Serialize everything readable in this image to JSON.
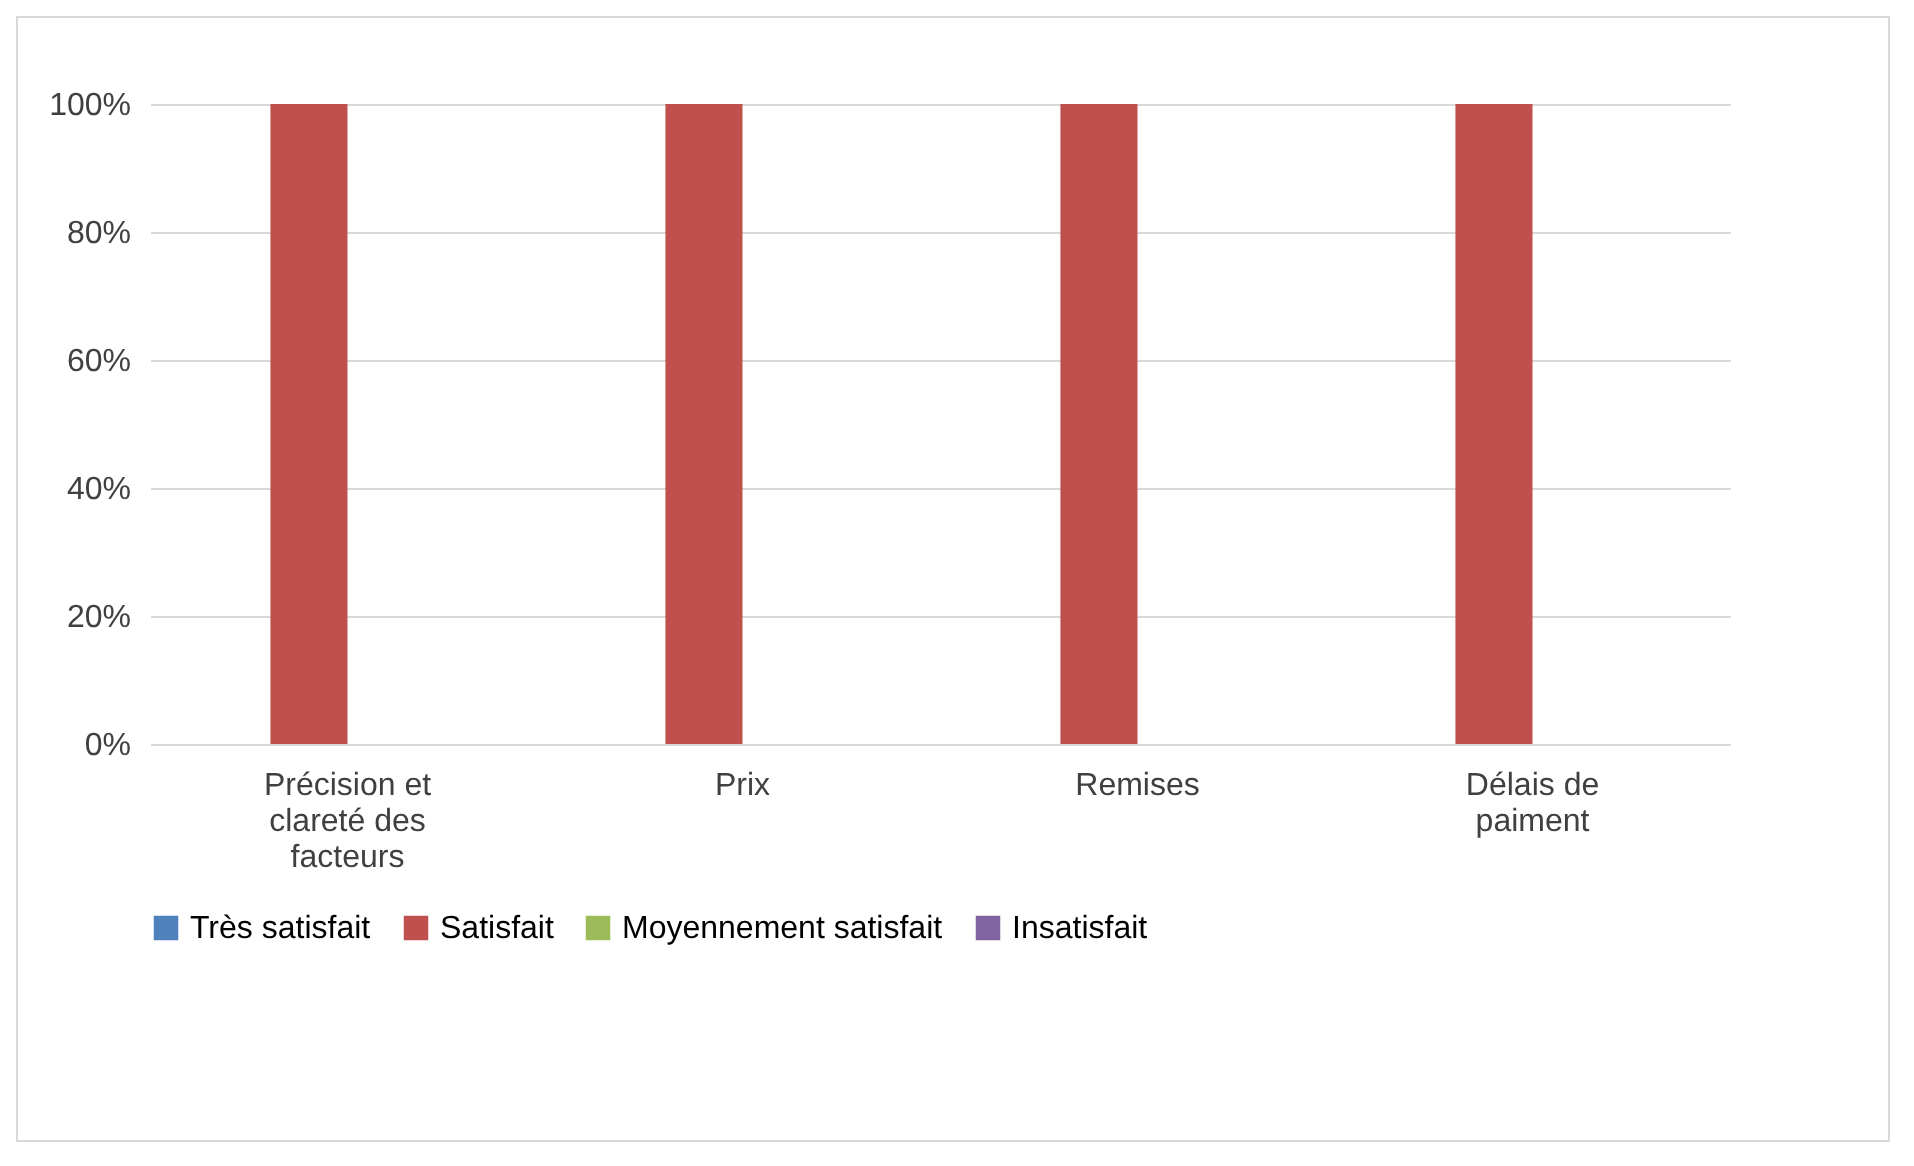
{
  "chart_data": {
    "type": "bar",
    "categories": [
      "Précision et clareté des facteurs",
      "Prix",
      "Remises",
      "Délais de paiment"
    ],
    "series": [
      {
        "name": "Très satisfait",
        "color": "#4f81bd",
        "values": [
          0,
          0,
          0,
          0
        ]
      },
      {
        "name": "Satisfait",
        "color": "#c0504d",
        "values": [
          100,
          100,
          100,
          100
        ]
      },
      {
        "name": "Moyennement satisfait",
        "color": "#9bbb59",
        "values": [
          0,
          0,
          0,
          0
        ]
      },
      {
        "name": "Insatisfait",
        "color": "#8064a2",
        "values": [
          0,
          0,
          0,
          0
        ]
      }
    ],
    "ylim": [
      0,
      100
    ],
    "yticks": [
      {
        "value": 0,
        "label": "0%"
      },
      {
        "value": 20,
        "label": "20%"
      },
      {
        "value": 40,
        "label": "40%"
      },
      {
        "value": 60,
        "label": "60%"
      },
      {
        "value": 80,
        "label": "80%"
      },
      {
        "value": 100,
        "label": "100%"
      }
    ],
    "grid": "y",
    "legend": "bottom"
  }
}
